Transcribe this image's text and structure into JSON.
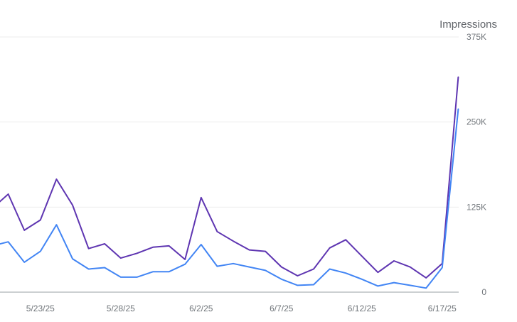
{
  "chart_data": {
    "type": "line",
    "ylabel": "Impressions",
    "ylim": [
      0,
      375000
    ],
    "y_ticks": [
      {
        "value": 0,
        "label": "0"
      },
      {
        "value": 125000,
        "label": "125K"
      },
      {
        "value": 250000,
        "label": "250K"
      },
      {
        "value": 375000,
        "label": "375K"
      }
    ],
    "x": [
      "5/20/25",
      "5/21/25",
      "5/22/25",
      "5/23/25",
      "5/24/25",
      "5/25/25",
      "5/26/25",
      "5/27/25",
      "5/28/25",
      "5/29/25",
      "5/30/25",
      "5/31/25",
      "6/1/25",
      "6/2/25",
      "6/3/25",
      "6/4/25",
      "6/5/25",
      "6/6/25",
      "6/7/25",
      "6/8/25",
      "6/9/25",
      "6/10/25",
      "6/11/25",
      "6/12/25",
      "6/13/25",
      "6/14/25",
      "6/15/25",
      "6/16/25",
      "6/17/25",
      "6/18/25"
    ],
    "x_tick_labels": [
      "5/23/25",
      "5/28/25",
      "6/2/25",
      "6/7/25",
      "6/12/25",
      "6/17/25"
    ],
    "grid": true,
    "legend": "none",
    "series": [
      {
        "color": "#5e35b1",
        "values": [
          123000,
          144000,
          91000,
          106000,
          166000,
          128000,
          64000,
          71000,
          50000,
          57000,
          66000,
          68000,
          48000,
          139000,
          89000,
          75000,
          62000,
          60000,
          37000,
          24000,
          34000,
          65000,
          77000,
          53000,
          29000,
          46000,
          37000,
          21000,
          42000,
          316000
        ]
      },
      {
        "color": "#4285f4",
        "values": [
          68000,
          74000,
          44000,
          60000,
          99000,
          49000,
          34000,
          36000,
          22000,
          22000,
          30000,
          30000,
          41000,
          70000,
          38000,
          42000,
          37000,
          32000,
          19000,
          10000,
          11000,
          34000,
          28000,
          19000,
          9000,
          14000,
          10000,
          6000,
          36000,
          269000
        ]
      }
    ]
  }
}
